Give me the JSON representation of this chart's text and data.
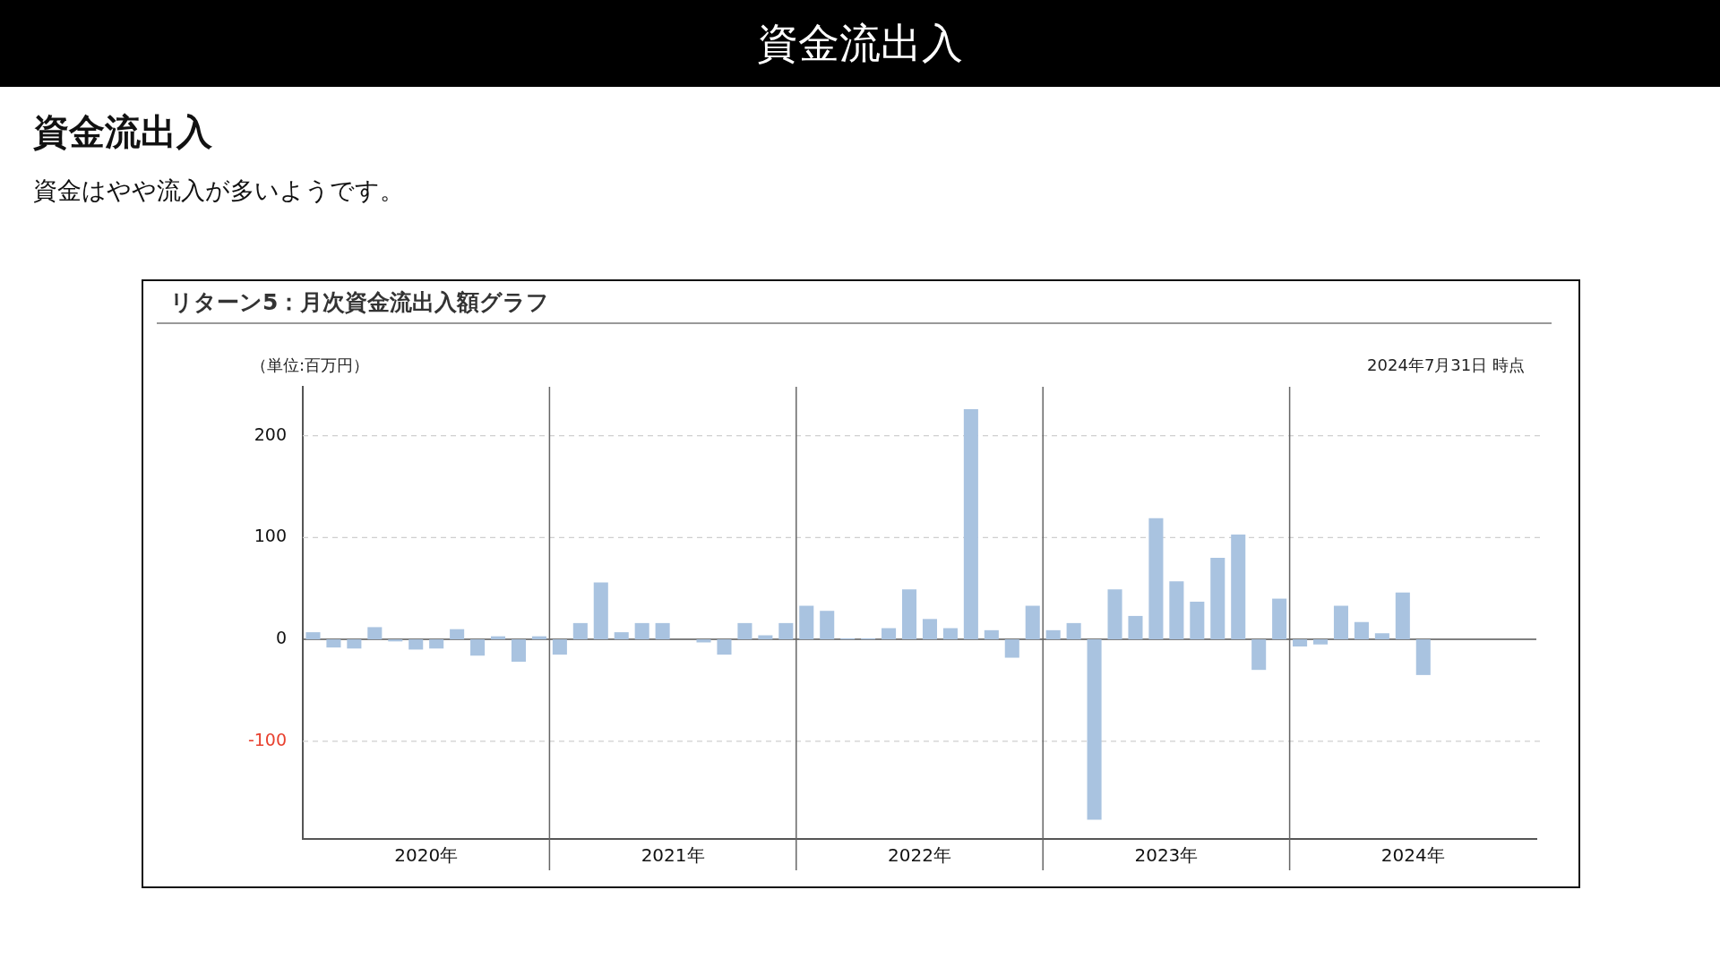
{
  "chart_data": {
    "type": "bar",
    "title": "資金流出入",
    "subtitle": "資金はやや流入が多いようです。",
    "annotations": [
      "資金流出入",
      "リターン5：月次資金流出入額グラフ",
      "（単位:百万円）",
      "2024年7月31日 時点"
    ],
    "categories": [
      null,
      null,
      null,
      null,
      null,
      null,
      "2020年",
      null,
      null,
      null,
      null,
      null,
      null,
      null,
      null,
      null,
      null,
      null,
      "2021年",
      null,
      null,
      null,
      null,
      null,
      null,
      null,
      null,
      null,
      null,
      null,
      "2022年",
      null,
      null,
      null,
      null,
      null,
      null,
      null,
      null,
      null,
      null,
      null,
      "2023年",
      null,
      null,
      null,
      null,
      null,
      null,
      null,
      null,
      null,
      null,
      null,
      "2024年",
      null,
      null,
      null,
      null,
      null
    ],
    "values": [
      7,
      -8,
      -9,
      12,
      -2,
      -10,
      -9,
      10,
      -16,
      3,
      -22,
      3,
      -15,
      16,
      56,
      7,
      16,
      16,
      0,
      -3,
      -15,
      16,
      4,
      16,
      33,
      28,
      1,
      1,
      11,
      49,
      20,
      11,
      226,
      9,
      -18,
      33,
      9,
      16,
      -177,
      49,
      23,
      119,
      57,
      37,
      80,
      103,
      -30,
      40,
      -7,
      -5,
      33,
      17,
      6,
      46,
      -35,
      null,
      null,
      null,
      null,
      null
    ],
    "color": "#a9c3e0",
    "ylim": [
      -196,
      248
    ],
    "yticks": [
      -100,
      0,
      100,
      200
    ],
    "grid": true,
    "legend": false
  }
}
